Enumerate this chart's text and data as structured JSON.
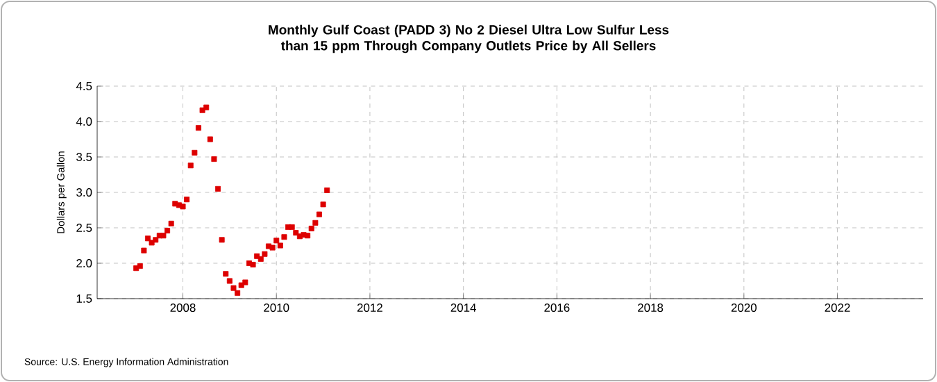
{
  "chart_data": {
    "type": "scatter",
    "title": "Monthly Gulf Coast (PADD 3) No 2 Diesel Ultra Low Sulfur Less than 15 ppm Through Company Outlets Price by All Sellers",
    "ylabel": "Dollars per Gallon",
    "annotations": [
      "Source: U.S. Energy Information Administration"
    ],
    "x": [
      "2007-01",
      "2007-02",
      "2007-03",
      "2007-04",
      "2007-05",
      "2007-06",
      "2007-07",
      "2007-08",
      "2007-09",
      "2007-10",
      "2007-11",
      "2007-12",
      "2008-01",
      "2008-02",
      "2008-03",
      "2008-04",
      "2008-05",
      "2008-06",
      "2008-07",
      "2008-08",
      "2008-09",
      "2008-10",
      "2008-11",
      "2008-12",
      "2009-01",
      "2009-02",
      "2009-03",
      "2009-04",
      "2009-05",
      "2009-06",
      "2009-07",
      "2009-08",
      "2009-09",
      "2009-10",
      "2009-11",
      "2009-12",
      "2010-01",
      "2010-02",
      "2010-03",
      "2010-04",
      "2010-05",
      "2010-06",
      "2010-07",
      "2010-08",
      "2010-09",
      "2010-10",
      "2010-11",
      "2010-12",
      "2011-01",
      "2011-02"
    ],
    "values": [
      1.93,
      1.96,
      2.18,
      2.35,
      2.29,
      2.33,
      2.39,
      2.39,
      2.46,
      2.56,
      2.84,
      2.82,
      2.8,
      2.9,
      3.38,
      3.56,
      3.91,
      4.16,
      4.2,
      3.75,
      3.47,
      3.05,
      2.33,
      1.85,
      1.75,
      1.65,
      1.58,
      1.69,
      1.73,
      2.0,
      1.98,
      2.1,
      2.06,
      2.13,
      2.24,
      2.22,
      2.32,
      2.25,
      2.37,
      2.51,
      2.51,
      2.43,
      2.38,
      2.4,
      2.39,
      2.49,
      2.57,
      2.69,
      2.83,
      3.03
    ],
    "color": "#dd0000",
    "marker": "square",
    "grid": true,
    "xlim": [
      "2006-03",
      "2023-11"
    ],
    "xticks": [
      "2008",
      "2010",
      "2012",
      "2014",
      "2016",
      "2018",
      "2020",
      "2022"
    ],
    "ylim": [
      1.5,
      4.5
    ],
    "yticks": [
      1.5,
      {
        "value": 2,
        "label": "2.0"
      },
      2.5,
      {
        "value": 3,
        "label": "3.0"
      },
      3.5,
      {
        "value": 4,
        "label": "4.0"
      },
      4.5
    ]
  }
}
